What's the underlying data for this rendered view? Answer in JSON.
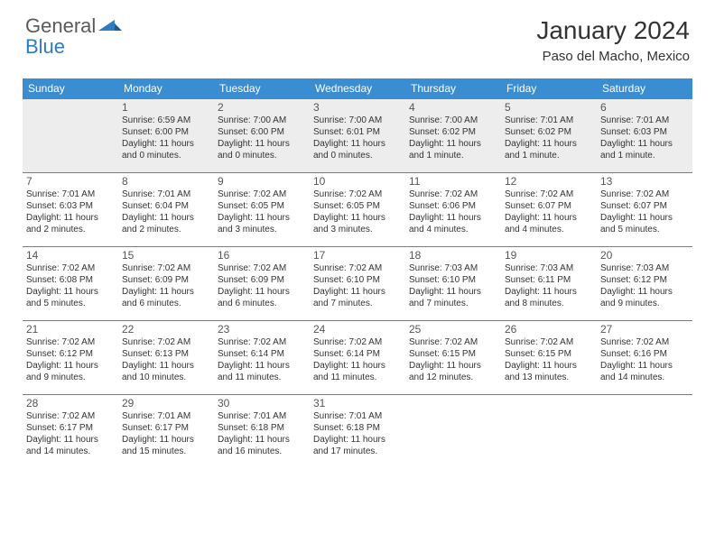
{
  "brand": {
    "part1": "General",
    "part2": "Blue"
  },
  "title": "January 2024",
  "location": "Paso del Macho, Mexico",
  "colors": {
    "accent": "#3a8dd0",
    "shaded": "#ededed",
    "bg": "#ffffff",
    "text": "#333333"
  },
  "layout": {
    "cols": 7,
    "rows": 6,
    "first_day_col": 1
  },
  "dayNames": [
    "Sunday",
    "Monday",
    "Tuesday",
    "Wednesday",
    "Thursday",
    "Friday",
    "Saturday"
  ],
  "days": [
    {
      "n": 1,
      "sr": "6:59 AM",
      "ss": "6:00 PM",
      "dl": "11 hours and 0 minutes."
    },
    {
      "n": 2,
      "sr": "7:00 AM",
      "ss": "6:00 PM",
      "dl": "11 hours and 0 minutes."
    },
    {
      "n": 3,
      "sr": "7:00 AM",
      "ss": "6:01 PM",
      "dl": "11 hours and 0 minutes."
    },
    {
      "n": 4,
      "sr": "7:00 AM",
      "ss": "6:02 PM",
      "dl": "11 hours and 1 minute."
    },
    {
      "n": 5,
      "sr": "7:01 AM",
      "ss": "6:02 PM",
      "dl": "11 hours and 1 minute."
    },
    {
      "n": 6,
      "sr": "7:01 AM",
      "ss": "6:03 PM",
      "dl": "11 hours and 1 minute."
    },
    {
      "n": 7,
      "sr": "7:01 AM",
      "ss": "6:03 PM",
      "dl": "11 hours and 2 minutes."
    },
    {
      "n": 8,
      "sr": "7:01 AM",
      "ss": "6:04 PM",
      "dl": "11 hours and 2 minutes."
    },
    {
      "n": 9,
      "sr": "7:02 AM",
      "ss": "6:05 PM",
      "dl": "11 hours and 3 minutes."
    },
    {
      "n": 10,
      "sr": "7:02 AM",
      "ss": "6:05 PM",
      "dl": "11 hours and 3 minutes."
    },
    {
      "n": 11,
      "sr": "7:02 AM",
      "ss": "6:06 PM",
      "dl": "11 hours and 4 minutes."
    },
    {
      "n": 12,
      "sr": "7:02 AM",
      "ss": "6:07 PM",
      "dl": "11 hours and 4 minutes."
    },
    {
      "n": 13,
      "sr": "7:02 AM",
      "ss": "6:07 PM",
      "dl": "11 hours and 5 minutes."
    },
    {
      "n": 14,
      "sr": "7:02 AM",
      "ss": "6:08 PM",
      "dl": "11 hours and 5 minutes."
    },
    {
      "n": 15,
      "sr": "7:02 AM",
      "ss": "6:09 PM",
      "dl": "11 hours and 6 minutes."
    },
    {
      "n": 16,
      "sr": "7:02 AM",
      "ss": "6:09 PM",
      "dl": "11 hours and 6 minutes."
    },
    {
      "n": 17,
      "sr": "7:02 AM",
      "ss": "6:10 PM",
      "dl": "11 hours and 7 minutes."
    },
    {
      "n": 18,
      "sr": "7:03 AM",
      "ss": "6:10 PM",
      "dl": "11 hours and 7 minutes."
    },
    {
      "n": 19,
      "sr": "7:03 AM",
      "ss": "6:11 PM",
      "dl": "11 hours and 8 minutes."
    },
    {
      "n": 20,
      "sr": "7:03 AM",
      "ss": "6:12 PM",
      "dl": "11 hours and 9 minutes."
    },
    {
      "n": 21,
      "sr": "7:02 AM",
      "ss": "6:12 PM",
      "dl": "11 hours and 9 minutes."
    },
    {
      "n": 22,
      "sr": "7:02 AM",
      "ss": "6:13 PM",
      "dl": "11 hours and 10 minutes."
    },
    {
      "n": 23,
      "sr": "7:02 AM",
      "ss": "6:14 PM",
      "dl": "11 hours and 11 minutes."
    },
    {
      "n": 24,
      "sr": "7:02 AM",
      "ss": "6:14 PM",
      "dl": "11 hours and 11 minutes."
    },
    {
      "n": 25,
      "sr": "7:02 AM",
      "ss": "6:15 PM",
      "dl": "11 hours and 12 minutes."
    },
    {
      "n": 26,
      "sr": "7:02 AM",
      "ss": "6:15 PM",
      "dl": "11 hours and 13 minutes."
    },
    {
      "n": 27,
      "sr": "7:02 AM",
      "ss": "6:16 PM",
      "dl": "11 hours and 14 minutes."
    },
    {
      "n": 28,
      "sr": "7:02 AM",
      "ss": "6:17 PM",
      "dl": "11 hours and 14 minutes."
    },
    {
      "n": 29,
      "sr": "7:01 AM",
      "ss": "6:17 PM",
      "dl": "11 hours and 15 minutes."
    },
    {
      "n": 30,
      "sr": "7:01 AM",
      "ss": "6:18 PM",
      "dl": "11 hours and 16 minutes."
    },
    {
      "n": 31,
      "sr": "7:01 AM",
      "ss": "6:18 PM",
      "dl": "11 hours and 17 minutes."
    }
  ],
  "labels": {
    "sunrise": "Sunrise:",
    "sunset": "Sunset:",
    "daylight": "Daylight:"
  }
}
